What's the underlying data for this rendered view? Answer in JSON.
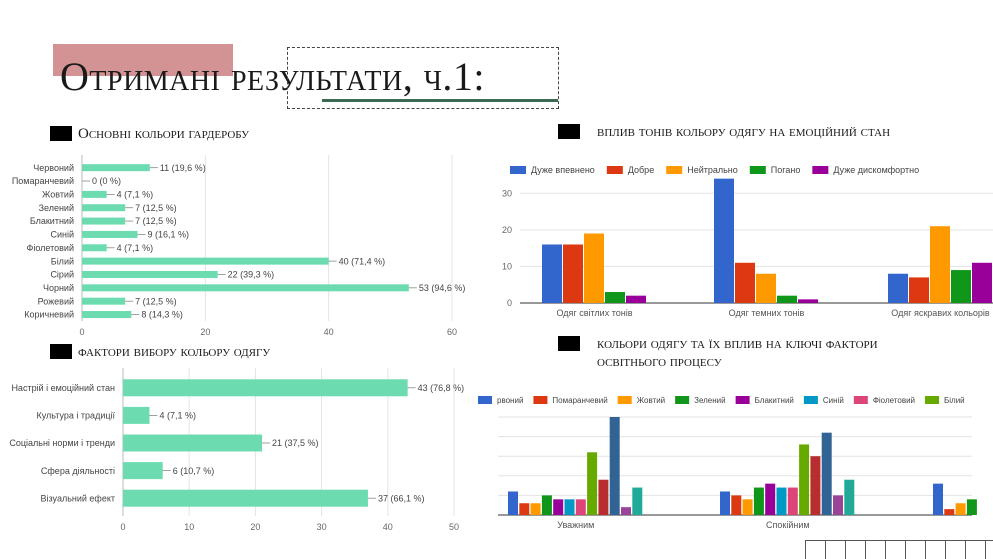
{
  "slide": {
    "title": "Отримані результати, ч.1:",
    "section1": "Основні кольори гардеробу",
    "section2": "фактори вибору кольору одягу",
    "section3": "вплив тонів кольору одягу на емоційний стан",
    "section4": "кольори одягу та їх вплив на ключі фактори освітнього процесу"
  },
  "colors": {
    "bar_green": "#6cdcb0",
    "title_accent": "#d39394",
    "underline": "#3b6a52"
  },
  "chart_data": [
    {
      "type": "bar",
      "orientation": "horizontal",
      "categories": [
        "Червоний",
        "Помаранчевий",
        "Жовтий",
        "Зелений",
        "Блакитний",
        "Синій",
        "Фіолетовий",
        "Білий",
        "Сірий",
        "Чорний",
        "Рожевий",
        "Коричневий"
      ],
      "values": [
        11,
        0,
        4,
        7,
        7,
        9,
        4,
        40,
        22,
        53,
        7,
        8
      ],
      "value_labels": [
        "11 (19,6 %)",
        "0 (0 %)",
        "4 (7,1 %)",
        "7 (12,5 %)",
        "7 (12,5 %)",
        "9 (16,1 %)",
        "4 (7,1 %)",
        "40 (71,4 %)",
        "22 (39,3 %)",
        "53 (94,6 %)",
        "7 (12,5 %)",
        "8 (14,3 %)"
      ],
      "xlim": [
        0,
        60
      ],
      "xticks": [
        0,
        20,
        40,
        60
      ],
      "grid": true
    },
    {
      "type": "bar",
      "orientation": "horizontal",
      "categories": [
        "Настрій і емоційний стан",
        "Культура і традиції",
        "Соціальні норми і тренди",
        "Сфера діяльності",
        "Візуальний ефект"
      ],
      "values": [
        43,
        4,
        21,
        6,
        37
      ],
      "value_labels": [
        "43 (76,8 %)",
        "4 (7,1 %)",
        "21 (37,5 %)",
        "6 (10,7 %)",
        "37 (66,1 %)"
      ],
      "xlim": [
        0,
        50
      ],
      "xticks": [
        0,
        10,
        20,
        30,
        40,
        50
      ],
      "grid": true
    },
    {
      "type": "bar",
      "categories": [
        "Одяг світлих тонів",
        "Одяг темних тонів",
        "Одяг яскравих кольорів"
      ],
      "series": [
        {
          "name": "Дуже впевнено",
          "color": "#3366cc",
          "values": [
            16,
            34,
            8
          ]
        },
        {
          "name": "Добре",
          "color": "#dc3912",
          "values": [
            16,
            11,
            7
          ]
        },
        {
          "name": "Нейтрально",
          "color": "#ff9900",
          "values": [
            19,
            8,
            21
          ]
        },
        {
          "name": "Погано",
          "color": "#109618",
          "values": [
            3,
            2,
            9
          ]
        },
        {
          "name": "Дуже дискомфортно",
          "color": "#990099",
          "values": [
            2,
            1,
            11
          ]
        }
      ],
      "ylim": [
        0,
        35
      ],
      "yticks": [
        0,
        10,
        20,
        30
      ],
      "legend": "top",
      "grid": true
    },
    {
      "type": "bar",
      "categories": [
        "Уважним",
        "Спокійним",
        ""
      ],
      "series": [
        {
          "name": "рвоний",
          "color": "#3366cc",
          "values": [
            6,
            6,
            8
          ]
        },
        {
          "name": "Помаранчевий",
          "color": "#dc3912",
          "values": [
            3,
            5,
            1.5
          ]
        },
        {
          "name": "Жовтий",
          "color": "#ff9900",
          "values": [
            3,
            4,
            3
          ]
        },
        {
          "name": "Зелений",
          "color": "#109618",
          "values": [
            5,
            7,
            4
          ]
        },
        {
          "name": "Блакитний",
          "color": "#990099",
          "values": [
            4,
            8,
            0
          ]
        },
        {
          "name": "Синій",
          "color": "#0099c6",
          "values": [
            4,
            7,
            0
          ]
        },
        {
          "name": "Фіолетовий",
          "color": "#dd4477",
          "values": [
            4,
            7,
            0
          ]
        },
        {
          "name": "Білий",
          "color": "#66aa00",
          "values": [
            16,
            18,
            0
          ]
        },
        {
          "name": "",
          "color": "#b82e2e",
          "values": [
            9,
            15,
            0
          ]
        },
        {
          "name": "",
          "color": "#316395",
          "values": [
            25,
            21,
            0
          ]
        },
        {
          "name": "",
          "color": "#994499",
          "values": [
            2,
            5,
            0
          ]
        },
        {
          "name": "",
          "color": "#22aa99",
          "values": [
            7,
            9,
            0
          ]
        }
      ],
      "ylim": [
        0,
        25
      ],
      "legend": "top",
      "grid": true
    }
  ]
}
